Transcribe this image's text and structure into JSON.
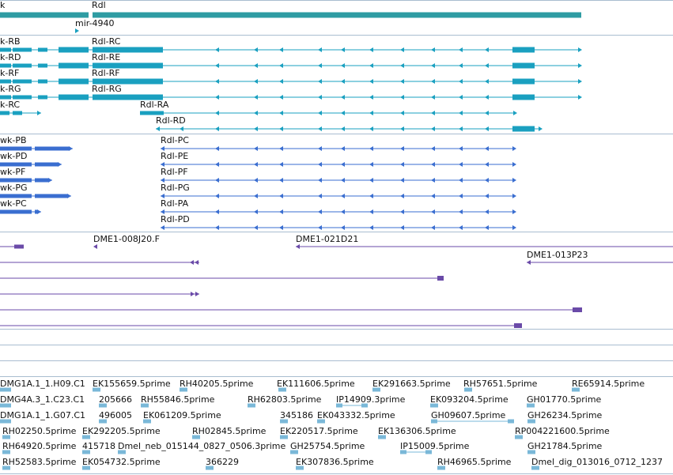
{
  "colors": {
    "gene": "#2e9ca3",
    "transcript": "#1aa0c0",
    "protein": "#3a6ed0",
    "clone": "#6a4aa8",
    "est": "#7ab8d8",
    "separator": "#a9bdd0"
  },
  "gene_track": {
    "gene_label_left": "k",
    "gene_label": "Rdl",
    "mirna_label": "mir-4940"
  },
  "transcripts": [
    {
      "left": "k-RB",
      "right": "Rdl-RC"
    },
    {
      "left": "k-RD",
      "right": "Rdl-RE"
    },
    {
      "left": "k-RF",
      "right": "Rdl-RF"
    },
    {
      "left": "k-RG",
      "right": "Rdl-RG"
    },
    {
      "left": "k-RC",
      "right": "Rdl-RA"
    },
    {
      "left": "",
      "right": "Rdl-RD"
    }
  ],
  "proteins": [
    {
      "left": "wk-PB",
      "right": "Rdl-PC"
    },
    {
      "left": "wk-PD",
      "right": "Rdl-PE"
    },
    {
      "left": "wk-PF",
      "right": "Rdl-PF"
    },
    {
      "left": "wk-PG",
      "right": "Rdl-PG"
    },
    {
      "left": "wk-PC",
      "right": "Rdl-PA"
    },
    {
      "left": "",
      "right": "Rdl-PD"
    }
  ],
  "clones": [
    "DME1-008J20.F",
    "DME1-021D21",
    "DME1-013P23"
  ],
  "ests": [
    [
      "DMG1A.1_1.H09.C1",
      "EK155659.5prime",
      "RH40205.5prime",
      "EK111606.5prime",
      "EK291663.5prime",
      "RH57651.5prime",
      "RE65914.5prime"
    ],
    [
      "DMG4A.3_1.C23.C1",
      "205666",
      "RH55846.5prime",
      "RH62803.5prime",
      "IP14909.3prime",
      "EK093204.5prime",
      "GH01770.5prime"
    ],
    [
      "DMG1A.1_1.G07.C1",
      "496005",
      "EK061209.5prime",
      "345186",
      "EK043332.5prime",
      "GH09607.5prime",
      "GH26234.5prime"
    ],
    [
      "RH02250.5prime",
      "EK292205.5prime",
      "RH02845.5prime",
      "EK220517.5prime",
      "EK136306.5prime",
      "RP004221600.5prime"
    ],
    [
      "RH64920.5prime",
      "415718",
      "Dmel_neb_015144_0827_0506.3prime",
      "GH25754.5prime",
      "IP15009.5prime",
      "GH21784.5prime"
    ],
    [
      "RH52583.5prime",
      "EK054732.5prime",
      "366229",
      "EK307836.5prime",
      "RH46965.5prime",
      "Dmel_dig_013016_0712_1237"
    ]
  ]
}
